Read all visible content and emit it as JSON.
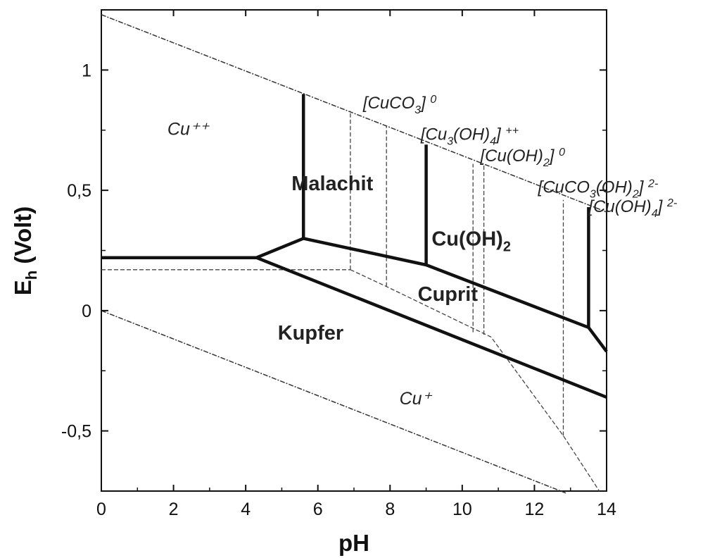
{
  "chart_data": {
    "type": "line",
    "xlabel": "pH",
    "ylabel_main": "E",
    "ylabel_sub": "h",
    "ylabel_rest": " (Volt)",
    "xlim": [
      0,
      14
    ],
    "ylim": [
      -0.75,
      1.25
    ],
    "x_ticks": [
      0,
      2,
      4,
      6,
      8,
      10,
      12,
      14
    ],
    "x_tick_labels": [
      "0",
      "2",
      "4",
      "6",
      "8",
      "10",
      "12",
      "14"
    ],
    "y_ticks": [
      1,
      0.5,
      0,
      -0.5
    ],
    "y_tick_labels": [
      "1",
      "0,5",
      "0",
      "-0,5"
    ],
    "grid": false,
    "region_labels": [
      {
        "text": "Cu⁺⁺",
        "style": "italic",
        "x": 2.4,
        "y": 0.73
      },
      {
        "text": "Malachit",
        "style": "bold",
        "x": 6.4,
        "y": 0.5
      },
      {
        "text": "Cuprit",
        "style": "bold",
        "x": 9.6,
        "y": 0.04
      },
      {
        "text": "Kupfer",
        "style": "bold",
        "x": 5.8,
        "y": -0.12
      },
      {
        "text": "Cu⁺",
        "style": "italic",
        "x": 8.7,
        "y": -0.39
      }
    ],
    "species_labels": [
      {
        "parts": [
          [
            "[CuCO",
            "n"
          ],
          [
            "3",
            "sub"
          ],
          [
            "] ",
            "n"
          ],
          [
            "0",
            "sup"
          ]
        ],
        "x": 7.25,
        "y": 0.84
      },
      {
        "parts": [
          [
            "[Cu",
            "n"
          ],
          [
            "3",
            "sub"
          ],
          [
            "(OH)",
            "n"
          ],
          [
            "4",
            "sub"
          ],
          [
            "] ",
            "n"
          ],
          [
            "++",
            "sup"
          ]
        ],
        "x": 8.85,
        "y": 0.71
      },
      {
        "parts": [
          [
            "[Cu(OH)",
            "n"
          ],
          [
            "2",
            "sub"
          ],
          [
            "] ",
            "n"
          ],
          [
            "0",
            "sup"
          ]
        ],
        "x": 10.5,
        "y": 0.62
      },
      {
        "parts": [
          [
            "[CuCO",
            "n"
          ],
          [
            "3",
            "sub"
          ],
          [
            "(OH)",
            "n"
          ],
          [
            "2",
            "sub"
          ],
          [
            "] ",
            "n"
          ],
          [
            "2-",
            "sup"
          ]
        ],
        "x": 12.1,
        "y": 0.49
      },
      {
        "parts": [
          [
            "[Cu(OH)",
            "n"
          ],
          [
            "4",
            "sub"
          ],
          [
            "] ",
            "n"
          ],
          [
            "2-",
            "sup"
          ]
        ],
        "x": 13.5,
        "y": 0.41
      }
    ],
    "cuoh2_label": {
      "main": "Cu(OH)",
      "sub": "2",
      "x": 10.25,
      "y": 0.27
    },
    "water_lines": [
      {
        "name": "upper",
        "points": [
          [
            0,
            1.23
          ],
          [
            14,
            0.41
          ]
        ]
      },
      {
        "name": "lower",
        "points": [
          [
            0,
            0.0
          ],
          [
            12.9,
            -0.76
          ]
        ]
      }
    ],
    "solid_lines": [
      {
        "points": [
          [
            0,
            0.22
          ],
          [
            4.3,
            0.22
          ],
          [
            5.6,
            0.3
          ],
          [
            9.0,
            0.19
          ],
          [
            13.5,
            -0.07
          ],
          [
            14,
            -0.17
          ]
        ]
      },
      {
        "points": [
          [
            4.3,
            0.22
          ],
          [
            14,
            -0.36
          ]
        ]
      },
      {
        "points": [
          [
            5.6,
            0.3
          ],
          [
            5.6,
            0.9
          ]
        ]
      },
      {
        "points": [
          [
            9.0,
            0.19
          ],
          [
            9.0,
            0.69
          ]
        ]
      },
      {
        "points": [
          [
            13.5,
            -0.07
          ],
          [
            13.5,
            0.43
          ]
        ]
      }
    ],
    "dashed_lines": [
      {
        "points": [
          [
            0,
            0.17
          ],
          [
            6.9,
            0.17
          ]
        ]
      },
      {
        "points": [
          [
            6.9,
            0.17
          ],
          [
            7.9,
            0.1
          ],
          [
            10.8,
            -0.11
          ],
          [
            12.8,
            -0.52
          ],
          [
            13.8,
            -0.75
          ]
        ]
      },
      {
        "points": [
          [
            6.9,
            0.17
          ],
          [
            6.9,
            0.83
          ]
        ]
      },
      {
        "points": [
          [
            7.9,
            0.1
          ],
          [
            7.9,
            0.77
          ]
        ]
      },
      {
        "points": [
          [
            10.3,
            -0.09
          ],
          [
            10.3,
            0.61
          ]
        ]
      },
      {
        "points": [
          [
            10.6,
            -0.1
          ],
          [
            10.6,
            0.61
          ]
        ]
      },
      {
        "points": [
          [
            12.8,
            -0.52
          ],
          [
            12.8,
            0.46
          ]
        ]
      }
    ]
  }
}
